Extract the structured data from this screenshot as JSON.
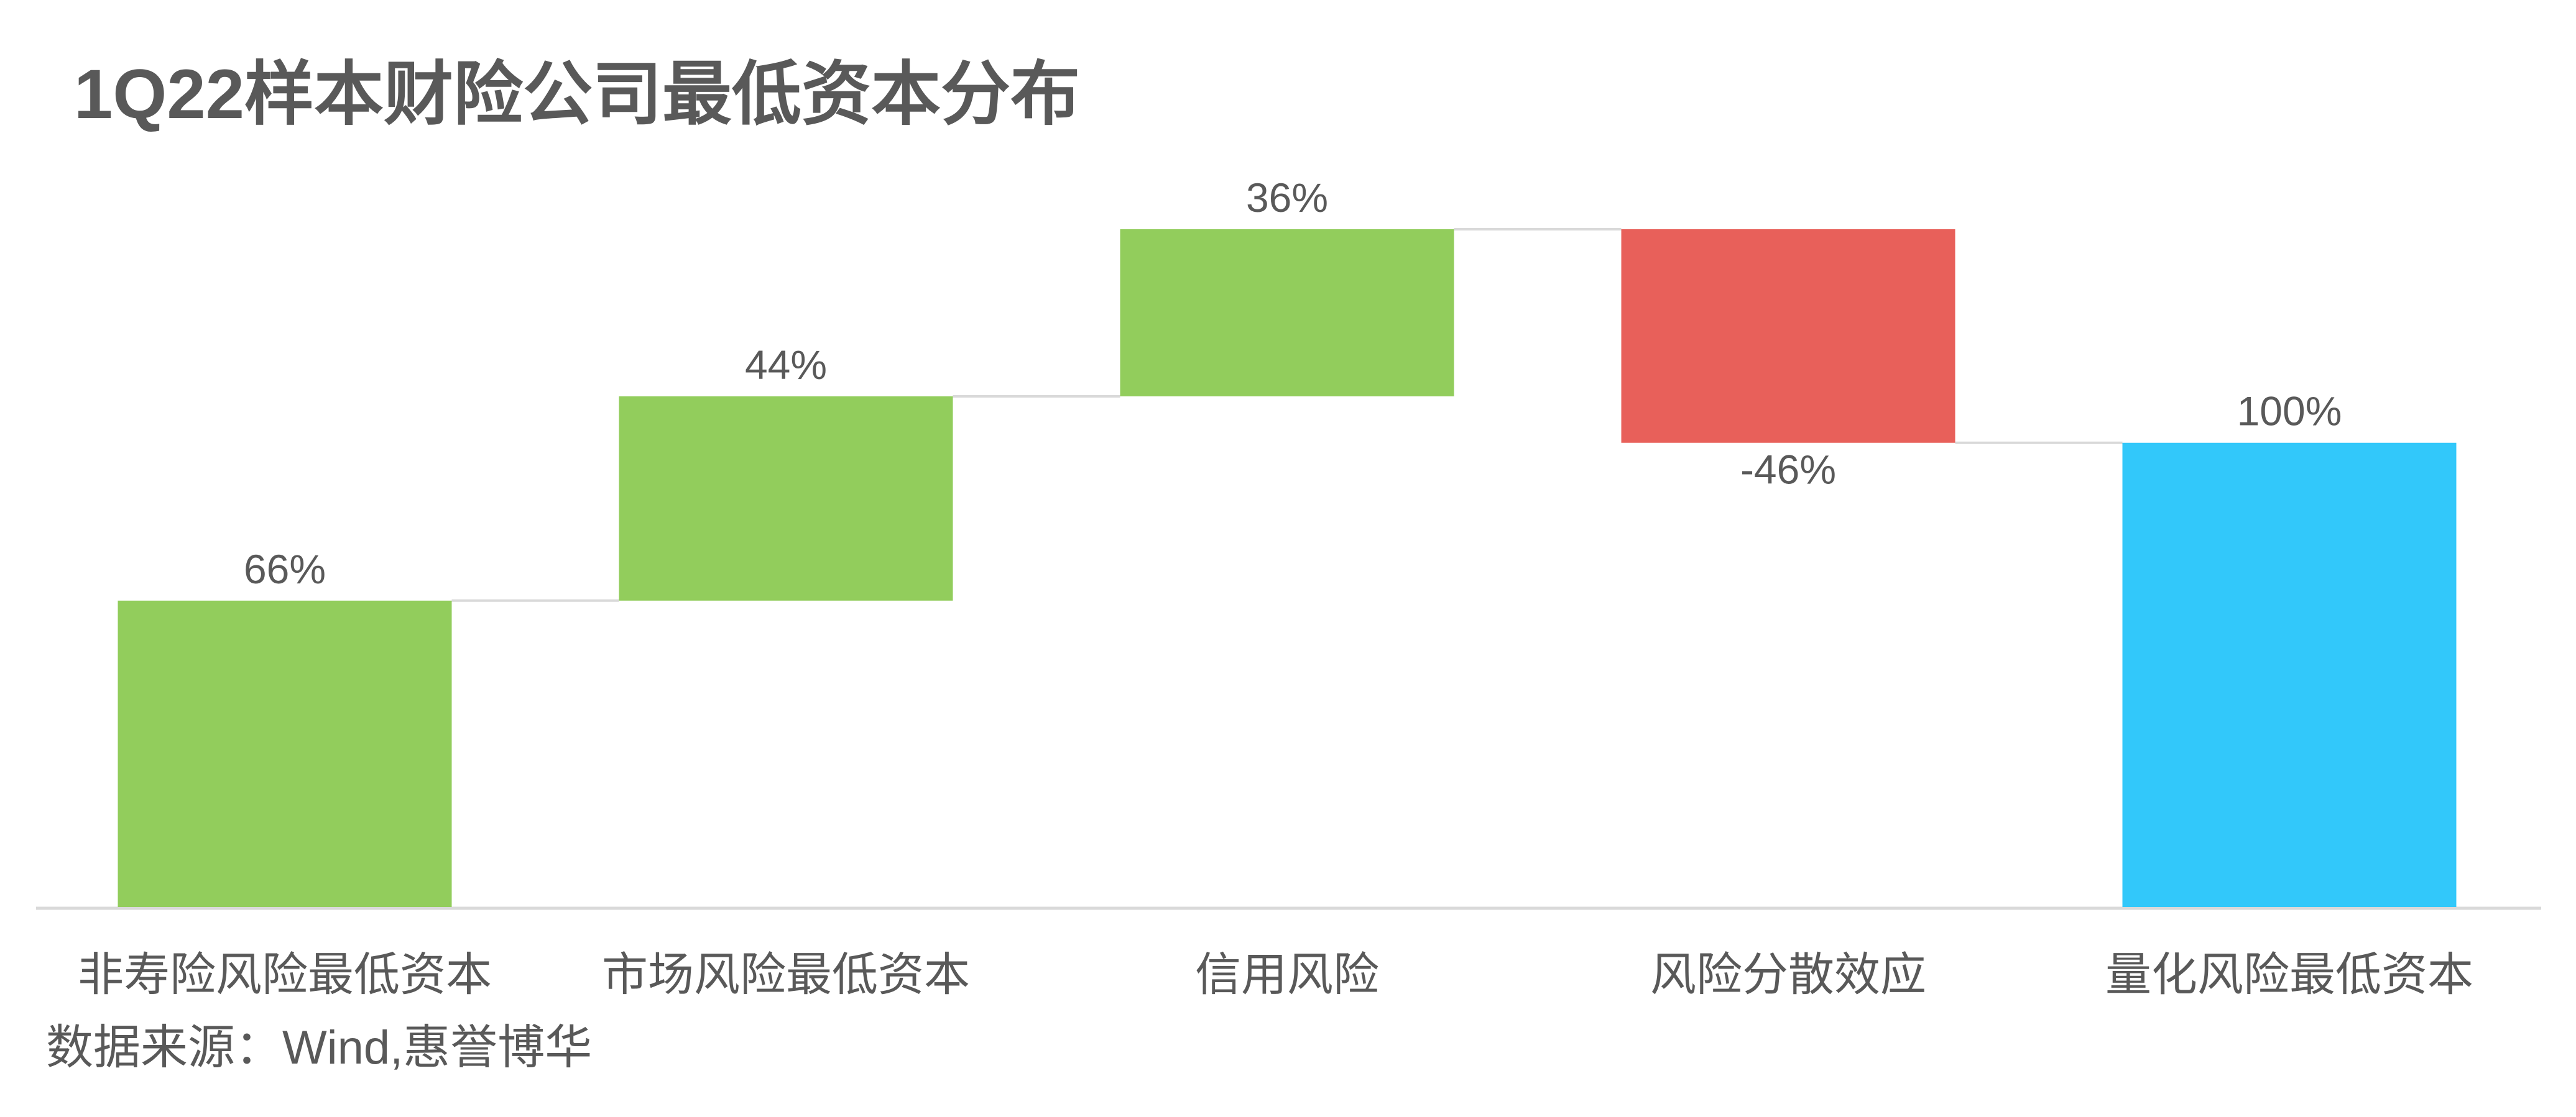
{
  "chart_data": {
    "type": "waterfall",
    "title": "1Q22样本财险公司最低资本分布",
    "categories": [
      "非寿险风险最低资本",
      "市场风险最低资本",
      "信用风险",
      "风险分散效应",
      "量化风险最低资本"
    ],
    "values": [
      66,
      44,
      36,
      -46,
      100
    ],
    "value_labels": [
      "66%",
      "44%",
      "36%",
      "-46%",
      "100%"
    ],
    "is_total": [
      false,
      false,
      false,
      false,
      true
    ],
    "increase_color": "#92cd5c",
    "decrease_color": "#e8605a",
    "total_color": "#32c8fa",
    "source": "数据来源：Wind,惠誉博华"
  }
}
